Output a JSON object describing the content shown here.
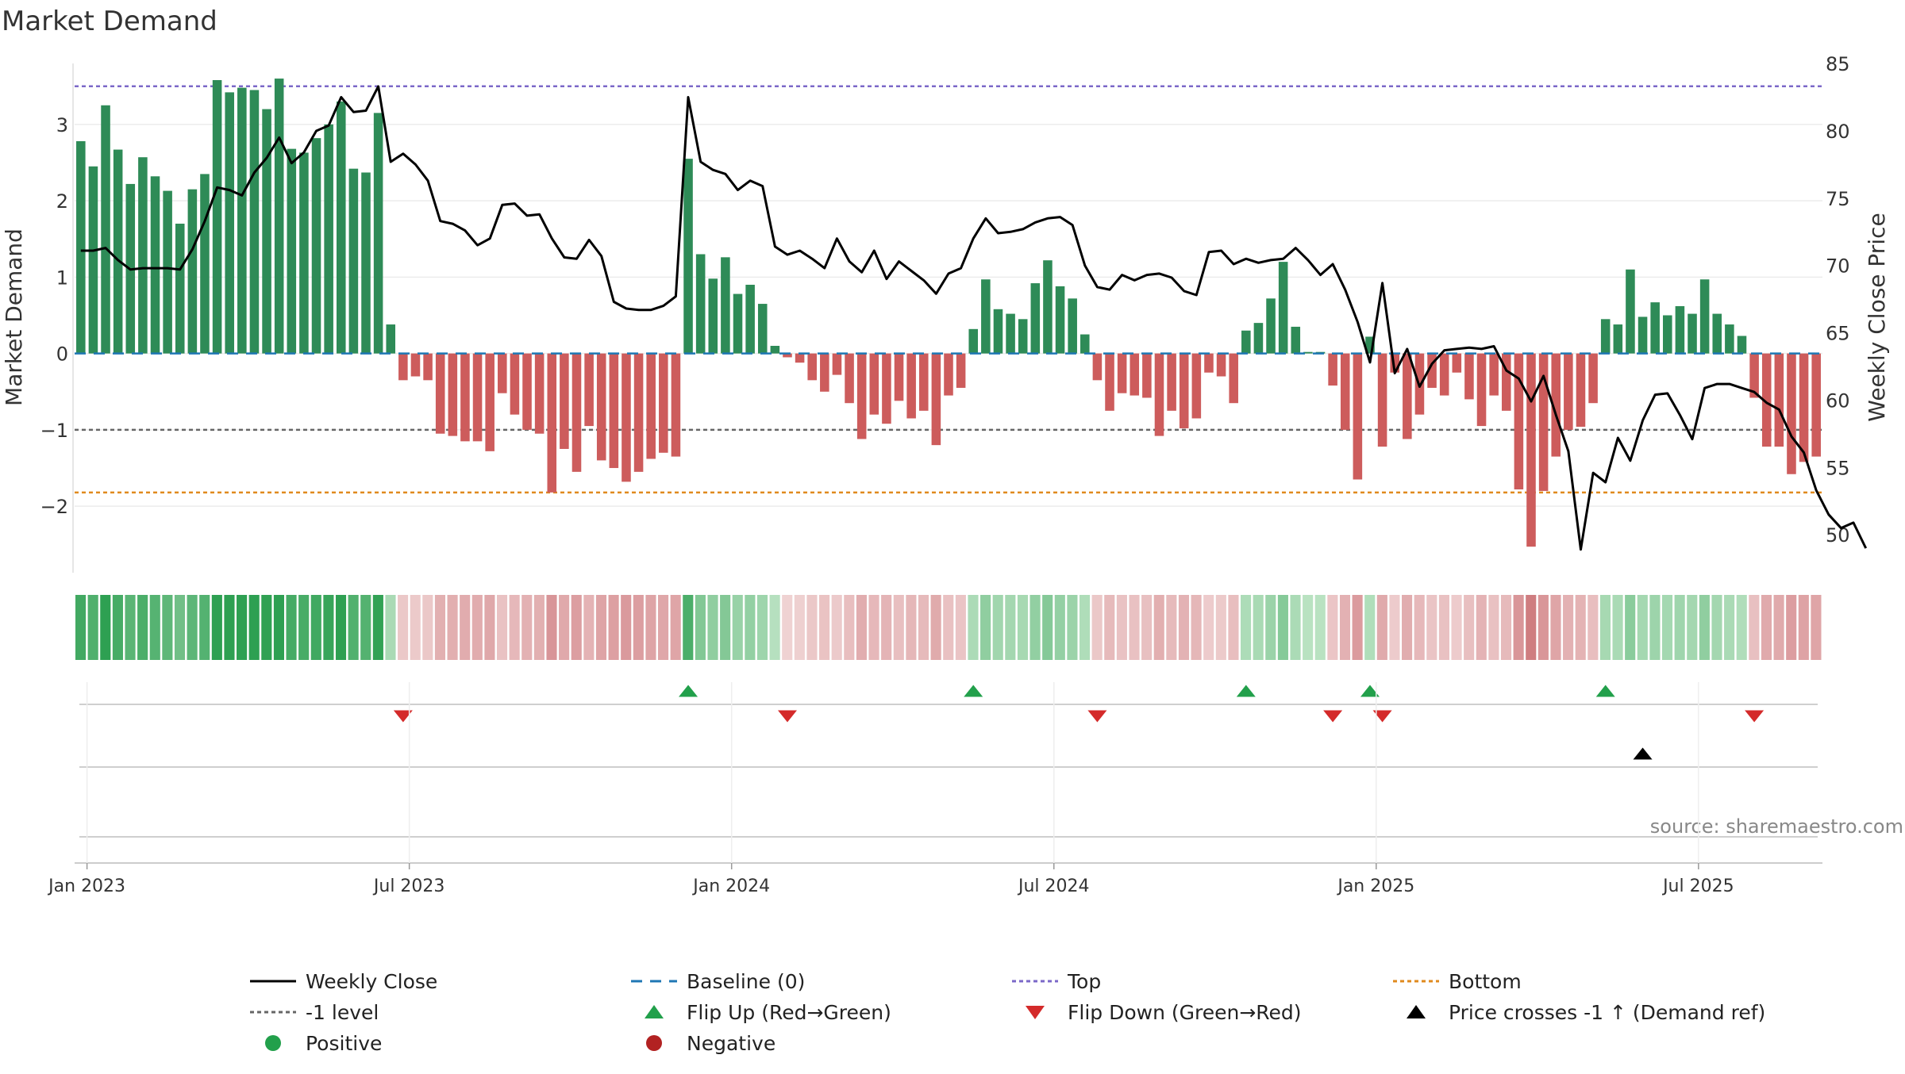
{
  "title": "Market Demand",
  "source_note": "source: sharemaestro.com",
  "chart_data": {
    "type": "bar",
    "title": "Market Demand",
    "ylabel_left": "Market Demand",
    "ylabel_right": "Weekly Close Price",
    "ylim_left": [
      -2.85,
      3.85
    ],
    "ylim_right": [
      47.3,
      85.3
    ],
    "left_ticks": [
      3,
      2,
      1,
      0,
      -1,
      -2
    ],
    "left_tick_labels": [
      "3",
      "2",
      "1",
      "0",
      "−1",
      "−2"
    ],
    "right_ticks": [
      85,
      80,
      75,
      70,
      65,
      60,
      55,
      50
    ],
    "x_tick_labels": [
      "Jan 2023",
      "Jul 2023",
      "Jan 2024",
      "Jul 2024",
      "Jan 2025",
      "Jul 2025"
    ],
    "x_tick_weeks": [
      1,
      27,
      53,
      79,
      105,
      131
    ],
    "reference_lines": {
      "baseline": 0,
      "minus_one": -1,
      "top": 3.5,
      "bottom": -1.82
    },
    "legend": [
      {
        "label": "Weekly Close",
        "marker": "line-black"
      },
      {
        "label": "Baseline (0)",
        "marker": "dash-blue"
      },
      {
        "label": "Top",
        "marker": "dot-purple"
      },
      {
        "label": "Bottom",
        "marker": "dot-orange"
      },
      {
        "label": "-1 level",
        "marker": "dot-gray"
      },
      {
        "label": "Flip Up (Red→Green)",
        "marker": "triangle-up-green"
      },
      {
        "label": "Flip Down (Green→Red)",
        "marker": "triangle-down-red"
      },
      {
        "label": "Price crosses -1 ↑ (Demand ref)",
        "marker": "triangle-up-black"
      },
      {
        "label": "Positive",
        "marker": "circle-green"
      },
      {
        "label": "Negative",
        "marker": "circle-red"
      }
    ],
    "demand": [
      2.78,
      2.45,
      3.25,
      2.67,
      2.22,
      2.57,
      2.32,
      2.13,
      1.7,
      2.15,
      2.35,
      3.58,
      3.42,
      3.48,
      3.45,
      3.2,
      3.6,
      2.68,
      2.63,
      2.82,
      3.0,
      3.3,
      2.42,
      2.37,
      3.15,
      0.38,
      -0.35,
      -0.3,
      -0.35,
      -1.05,
      -1.08,
      -1.15,
      -1.15,
      -1.28,
      -0.52,
      -0.8,
      -1.0,
      -1.05,
      -1.82,
      -1.25,
      -1.55,
      -0.95,
      -1.4,
      -1.5,
      -1.68,
      -1.55,
      -1.38,
      -1.3,
      -1.35,
      2.55,
      1.3,
      0.98,
      1.26,
      0.78,
      0.9,
      0.65,
      0.1,
      -0.05,
      -0.12,
      -0.35,
      -0.5,
      -0.28,
      -0.65,
      -1.12,
      -0.8,
      -0.92,
      -0.62,
      -0.85,
      -0.75,
      -1.2,
      -0.55,
      -0.45,
      0.32,
      0.97,
      0.58,
      0.52,
      0.45,
      0.92,
      1.22,
      0.88,
      0.72,
      0.25,
      -0.35,
      -0.75,
      -0.52,
      -0.55,
      -0.58,
      -1.08,
      -0.75,
      -0.98,
      -0.85,
      -0.25,
      -0.3,
      -0.65,
      0.3,
      0.4,
      0.72,
      1.2,
      0.35,
      0.02,
      0.02,
      -0.42,
      -1.0,
      -1.65,
      0.22,
      -1.22,
      -0.25,
      -1.12,
      -0.8,
      -0.45,
      -0.55,
      -0.25,
      -0.6,
      -0.95,
      -0.55,
      -0.75,
      -1.78,
      -2.53,
      -1.8,
      -1.35,
      -1.0,
      -0.96,
      -0.65,
      0.45,
      0.38,
      1.1,
      0.48,
      0.67,
      0.5,
      0.62,
      0.52,
      0.97,
      0.52,
      0.38,
      0.23,
      -0.58,
      -1.22,
      -1.22,
      -1.58,
      -1.42,
      -1.35
    ],
    "close": [
      71.1,
      71.1,
      71.3,
      70.4,
      69.7,
      69.8,
      69.8,
      69.8,
      69.7,
      71.2,
      73.3,
      75.8,
      75.6,
      75.2,
      76.9,
      78.0,
      79.5,
      77.6,
      78.4,
      80.0,
      80.4,
      82.5,
      81.4,
      81.5,
      83.3,
      77.7,
      78.3,
      77.5,
      76.3,
      73.3,
      73.1,
      72.6,
      71.5,
      72.0,
      74.5,
      74.6,
      73.7,
      73.8,
      72.0,
      70.6,
      70.5,
      71.9,
      70.7,
      67.3,
      66.8,
      66.7,
      66.7,
      67.0,
      67.7,
      82.5,
      77.7,
      77.1,
      76.8,
      75.6,
      76.3,
      75.9,
      71.4,
      70.8,
      71.1,
      70.5,
      69.8,
      72.0,
      70.3,
      69.5,
      71.1,
      69.0,
      70.3,
      69.6,
      68.9,
      67.9,
      69.4,
      69.8,
      72.0,
      73.5,
      72.4,
      72.5,
      72.7,
      73.2,
      73.5,
      73.6,
      73.0,
      70.0,
      68.4,
      68.2,
      69.3,
      68.9,
      69.3,
      69.4,
      69.1,
      68.1,
      67.8,
      71.0,
      71.1,
      70.1,
      70.5,
      70.2,
      70.4,
      70.5,
      71.3,
      70.4,
      69.3,
      70.1,
      68.2,
      65.8,
      62.8,
      68.7,
      62.0,
      63.8,
      61.0,
      62.7,
      63.7,
      63.8,
      63.9,
      63.8,
      64.0,
      62.2,
      61.6,
      59.9,
      61.8,
      58.9,
      56.2,
      48.9,
      54.6,
      53.9,
      57.2,
      55.5,
      58.5,
      60.4,
      60.5,
      58.9,
      57.1,
      60.9,
      61.2,
      61.2,
      60.9,
      60.6,
      59.8,
      59.3,
      57.3,
      56.1,
      53.3,
      51.5,
      50.5,
      50.9,
      49.0
    ]
  }
}
